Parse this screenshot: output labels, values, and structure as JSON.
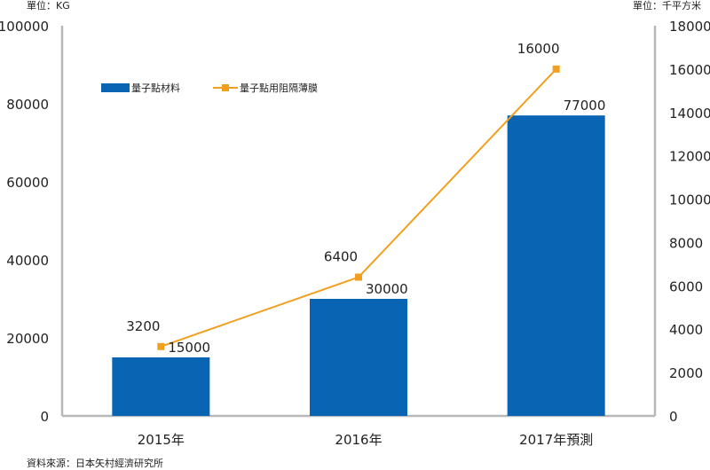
{
  "chart_data": {
    "type": "bar",
    "categories": [
      "2015年",
      "2016年",
      "2017年預測"
    ],
    "series": [
      {
        "name": "量子點材料",
        "type": "bar",
        "axis": "left",
        "values": [
          15000,
          30000,
          77000
        ],
        "color": "#0a64b4"
      },
      {
        "name": "量子點用阻隔薄膜",
        "type": "line",
        "axis": "right",
        "values": [
          3200,
          6400,
          16000
        ],
        "color": "#f0a01e"
      }
    ],
    "y_left": {
      "unit": "單位：KG",
      "ylim": [
        0,
        100000
      ],
      "ticks": [
        "0",
        "20000",
        "40000",
        "60000",
        "80000",
        "100000"
      ]
    },
    "y_right": {
      "unit": "單位：千平方米",
      "ylim": [
        0,
        18000
      ],
      "ticks": [
        "0",
        "2000",
        "4000",
        "6000",
        "8000",
        "10000",
        "12000",
        "14000",
        "16000",
        "18000"
      ]
    },
    "grid": false,
    "legend": "top-left",
    "source": "資料來源：日本矢村經濟研究所"
  }
}
